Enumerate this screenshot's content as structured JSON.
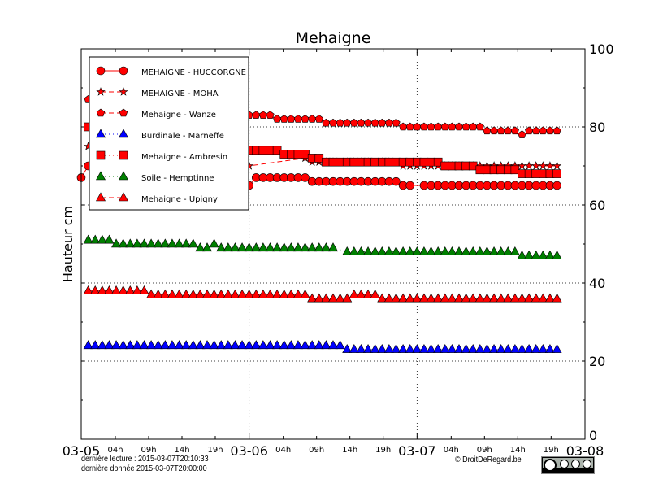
{
  "chart_data": {
    "type": "line",
    "title": "Mehaigne",
    "ylabel": "Hauteur cm",
    "ylim": [
      0,
      100
    ],
    "y_axis_side": "right",
    "y_ticks": [
      "0",
      "20",
      "40",
      "60",
      "80",
      "100"
    ],
    "xlim": [
      "2015-03-05T00:00",
      "2015-03-08T00:00"
    ],
    "x_major_ticks": [
      "03-05",
      "03-06",
      "03-07",
      "03-08"
    ],
    "x_minor_ticks": [
      "04h",
      "09h",
      "14h",
      "19h"
    ],
    "grid": true,
    "legend_position": "top-left",
    "sampling": "hourly",
    "series": [
      {
        "name": "MEHAIGNE - HUCCORGNE",
        "color": "#ff0000",
        "marker": "circle",
        "line": "solid",
        "segments": [
          [
            "2015-03-05T00:00",
            "2015-03-05T00:00",
            67
          ],
          [
            "2015-03-05T01:00",
            "2015-03-05T23:00",
            70
          ],
          [
            "2015-03-06T00:00",
            "2015-03-06T00:00",
            65
          ],
          [
            "2015-03-06T01:00",
            "2015-03-06T08:00",
            67
          ],
          [
            "2015-03-06T09:00",
            "2015-03-06T21:00",
            66
          ],
          [
            "2015-03-06T22:00",
            "2015-03-06T23:00",
            65
          ],
          [
            "2015-03-07T01:00",
            "2015-03-07T20:00",
            65
          ]
        ]
      },
      {
        "name": "MEHAIGNE - MOHA",
        "color": "#ff0000",
        "marker": "star",
        "line": "dashed",
        "segments": [
          [
            "2015-03-05T01:00",
            "2015-03-05T23:00",
            75
          ],
          [
            "2015-03-06T00:00",
            "2015-03-06T00:00",
            70
          ],
          [
            "2015-03-06T08:00",
            "2015-03-06T08:00",
            72
          ],
          [
            "2015-03-06T09:00",
            "2015-03-06T21:00",
            71
          ],
          [
            "2015-03-06T22:00",
            "2015-03-07T20:00",
            70
          ]
        ]
      },
      {
        "name": "Mehaigne - Wanze",
        "color": "#ff0000",
        "marker": "pentagon",
        "line": "dashed",
        "segments": [
          [
            "2015-03-05T01:00",
            "2015-03-05T23:00",
            87
          ],
          [
            "2015-03-06T00:00",
            "2015-03-06T03:00",
            83
          ],
          [
            "2015-03-06T04:00",
            "2015-03-06T10:00",
            82
          ],
          [
            "2015-03-06T11:00",
            "2015-03-06T21:00",
            81
          ],
          [
            "2015-03-06T22:00",
            "2015-03-07T09:00",
            80
          ],
          [
            "2015-03-07T10:00",
            "2015-03-07T14:00",
            79
          ],
          [
            "2015-03-07T15:00",
            "2015-03-07T15:00",
            78
          ],
          [
            "2015-03-07T16:00",
            "2015-03-07T20:00",
            79
          ]
        ]
      },
      {
        "name": "Burdinale - Marneffe",
        "color": "#0000ff",
        "marker": "triangle",
        "line": "dotted",
        "segments": [
          [
            "2015-03-05T01:00",
            "2015-03-06T13:00",
            24
          ],
          [
            "2015-03-06T14:00",
            "2015-03-07T20:00",
            23
          ]
        ]
      },
      {
        "name": "Mehaigne - Ambresin",
        "color": "#ff0000",
        "marker": "square",
        "line": "dotted",
        "segments": [
          [
            "2015-03-05T01:00",
            "2015-03-05T23:00",
            80
          ],
          [
            "2015-03-06T00:00",
            "2015-03-06T04:00",
            74
          ],
          [
            "2015-03-06T05:00",
            "2015-03-06T08:00",
            73
          ],
          [
            "2015-03-06T09:00",
            "2015-03-06T10:00",
            72
          ],
          [
            "2015-03-06T11:00",
            "2015-03-07T03:00",
            71
          ],
          [
            "2015-03-07T04:00",
            "2015-03-07T08:00",
            70
          ],
          [
            "2015-03-07T09:00",
            "2015-03-07T14:00",
            69
          ],
          [
            "2015-03-07T15:00",
            "2015-03-07T20:00",
            68
          ]
        ]
      },
      {
        "name": "Soile - Hemptinne",
        "color": "#007f00",
        "marker": "triangle",
        "line": "dotted",
        "segments": [
          [
            "2015-03-05T01:00",
            "2015-03-05T04:00",
            51
          ],
          [
            "2015-03-05T05:00",
            "2015-03-05T16:00",
            50
          ],
          [
            "2015-03-05T17:00",
            "2015-03-05T18:00",
            49
          ],
          [
            "2015-03-05T19:00",
            "2015-03-05T19:00",
            50
          ],
          [
            "2015-03-05T20:00",
            "2015-03-06T12:00",
            49
          ],
          [
            "2015-03-06T14:00",
            "2015-03-07T14:00",
            48
          ],
          [
            "2015-03-07T15:00",
            "2015-03-07T20:00",
            47
          ]
        ]
      },
      {
        "name": "Mehaigne - Upigny",
        "color": "#ff0000",
        "marker": "triangle",
        "line": "dashed",
        "segments": [
          [
            "2015-03-05T01:00",
            "2015-03-05T09:00",
            38
          ],
          [
            "2015-03-05T10:00",
            "2015-03-06T08:00",
            37
          ],
          [
            "2015-03-06T09:00",
            "2015-03-06T14:00",
            36
          ],
          [
            "2015-03-06T15:00",
            "2015-03-06T18:00",
            37
          ],
          [
            "2015-03-06T19:00",
            "2015-03-07T20:00",
            36
          ]
        ]
      }
    ]
  },
  "footer": {
    "last_read": "dernière lecture : 2015-03-07T20:10:33",
    "last_data": "dernière donnée  2015-03-07T20:00:00",
    "copyright": "© DroitDeRegard.be",
    "license_badge": "CC BY NC SA"
  }
}
